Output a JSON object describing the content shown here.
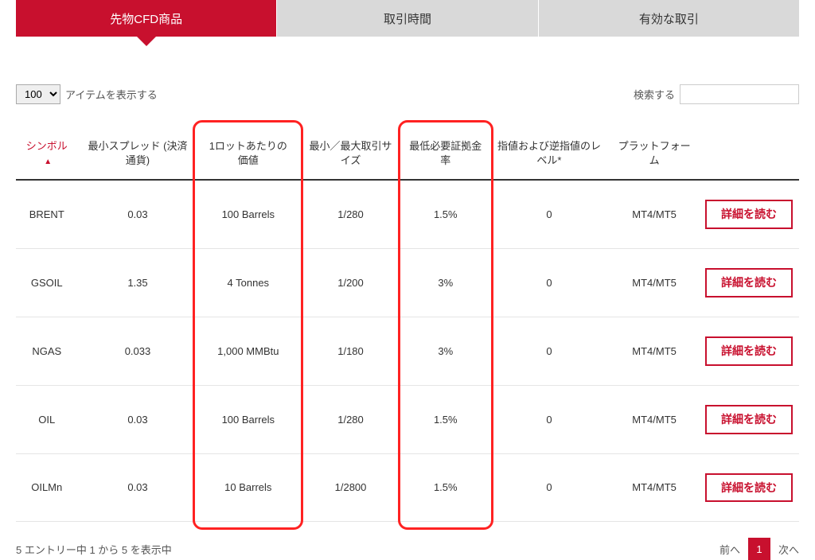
{
  "colors": {
    "accent": "#c8102e",
    "tab_inactive_bg": "#d9d9d9",
    "highlight_border": "#f22",
    "row_border": "#e5e5e5",
    "header_border": "#333333"
  },
  "tabs": [
    {
      "label": "先物CFD商品",
      "active": true
    },
    {
      "label": "取引時間",
      "active": false
    },
    {
      "label": "有効な取引",
      "active": false
    }
  ],
  "controls": {
    "length_options": [
      "100"
    ],
    "length_value": "100",
    "length_suffix": "アイテムを表示する",
    "search_label": "検索する",
    "search_value": ""
  },
  "table": {
    "columns": [
      {
        "label": "シンボル",
        "sorted": "asc"
      },
      {
        "label": "最小スプレッド (決済通貨)"
      },
      {
        "label": "1ロットあたりの価値"
      },
      {
        "label": "最小／最大取引サイズ"
      },
      {
        "label": "最低必要証拠金率"
      },
      {
        "label": "指値および逆指値のレベル*"
      },
      {
        "label": "プラットフォーム"
      },
      {
        "label": ""
      }
    ],
    "rows": [
      {
        "symbol": "BRENT",
        "spread": "0.03",
        "lot_value": "100 Barrels",
        "size": "1/280",
        "margin": "1.5%",
        "level": "0",
        "platform": "MT4/MT5"
      },
      {
        "symbol": "GSOIL",
        "spread": "1.35",
        "lot_value": "4 Tonnes",
        "size": "1/200",
        "margin": "3%",
        "level": "0",
        "platform": "MT4/MT5"
      },
      {
        "symbol": "NGAS",
        "spread": "0.033",
        "lot_value": "1,000 MMBtu",
        "size": "1/180",
        "margin": "3%",
        "level": "0",
        "platform": "MT4/MT5"
      },
      {
        "symbol": "OIL",
        "spread": "0.03",
        "lot_value": "100 Barrels",
        "size": "1/280",
        "margin": "1.5%",
        "level": "0",
        "platform": "MT4/MT5"
      },
      {
        "symbol": "OILMn",
        "spread": "0.03",
        "lot_value": "10 Barrels",
        "size": "1/2800",
        "margin": "1.5%",
        "level": "0",
        "platform": "MT4/MT5"
      }
    ],
    "detail_button_label": "詳細を読む"
  },
  "highlights": [
    {
      "col_index": 2
    },
    {
      "col_index": 4
    }
  ],
  "footer": {
    "info": "5 エントリー中 1 から 5 を表示中",
    "prev_label": "前へ",
    "next_label": "次へ",
    "current_page": "1"
  }
}
